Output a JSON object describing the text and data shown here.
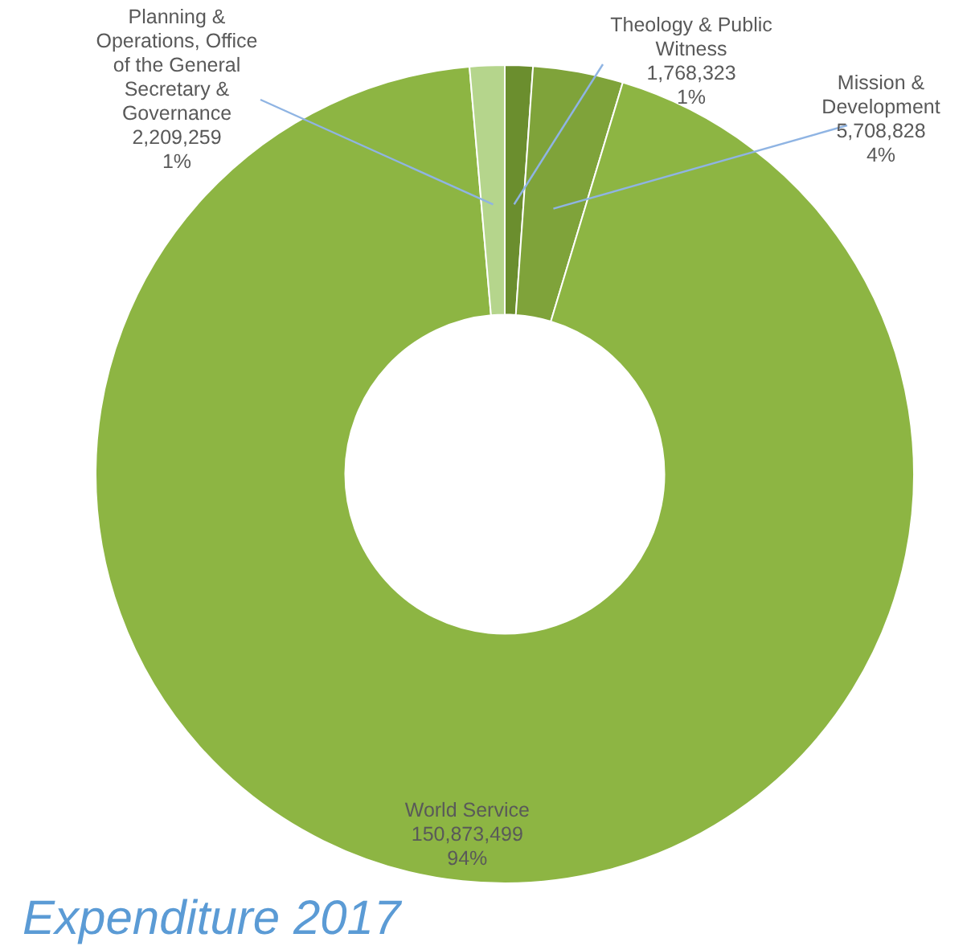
{
  "chart_data": {
    "type": "donut",
    "title": "Expenditure 2017",
    "categories": [
      "Theology & Public Witness",
      "Mission & Development",
      "World Service",
      "Planning & Operations, Office of the General Secretary & Governance"
    ],
    "values": [
      1768323,
      5708828,
      150873499,
      2209259
    ],
    "colors": [
      "#6b8e2e",
      "#7fa33a",
      "#8db543",
      "#b5d58c"
    ],
    "value_labels": [
      "1,768,323\n1%",
      "5,708,828\n4%",
      "150,873,499\n94%",
      "2,209,259\n1%"
    ],
    "legend": false
  }
}
